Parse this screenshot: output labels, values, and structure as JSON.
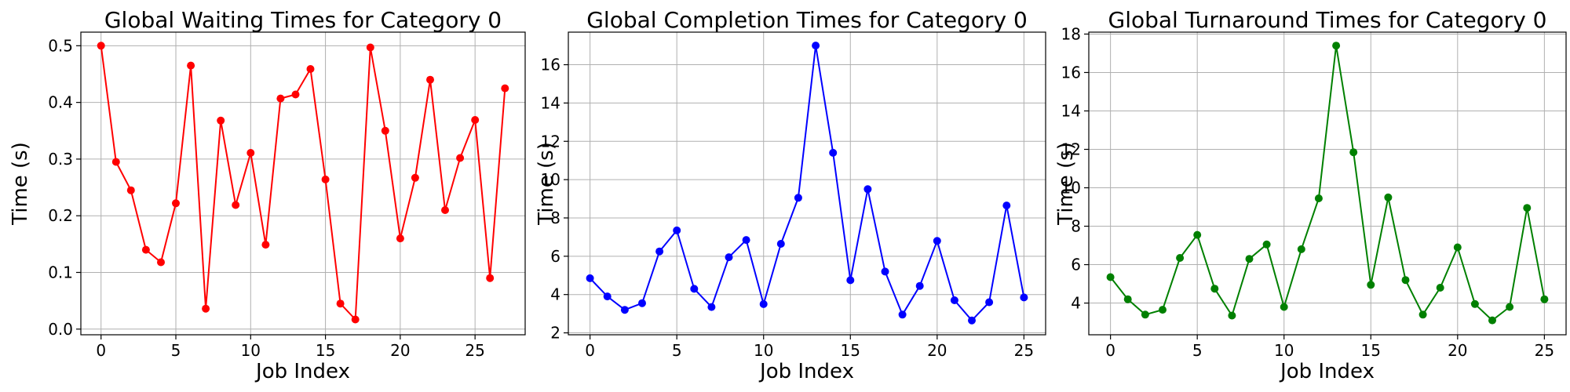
{
  "chart_data": [
    {
      "type": "line",
      "title": "Global Waiting Times for Category 0",
      "xlabel": "Job Index",
      "ylabel": "Time (s)",
      "color": "#ff0000",
      "grid": true,
      "marker": "circle",
      "xlim": [
        -1.35,
        28.35
      ],
      "ylim": [
        -0.01,
        0.524
      ],
      "xticks": [
        "0",
        "5",
        "10",
        "15",
        "20",
        "25"
      ],
      "yticks": [
        "0.0",
        "0.1",
        "0.2",
        "0.3",
        "0.4",
        "0.5"
      ],
      "x": [
        0,
        1,
        2,
        3,
        4,
        5,
        6,
        7,
        8,
        9,
        10,
        11,
        12,
        13,
        14,
        15,
        16,
        17,
        18,
        19,
        20,
        21,
        22,
        23,
        24,
        25,
        26,
        27
      ],
      "y": [
        0.5,
        0.295,
        0.245,
        0.14,
        0.118,
        0.222,
        0.465,
        0.036,
        0.368,
        0.219,
        0.311,
        0.149,
        0.407,
        0.414,
        0.459,
        0.264,
        0.045,
        0.017,
        0.497,
        0.35,
        0.16,
        0.267,
        0.44,
        0.21,
        0.302,
        0.369,
        0.09,
        0.425
      ]
    },
    {
      "type": "line",
      "title": "Global Completion Times for Category 0",
      "xlabel": "Job Index",
      "ylabel": "Time (s)",
      "color": "#0000ff",
      "grid": true,
      "marker": "circle",
      "xlim": [
        -1.25,
        26.25
      ],
      "ylim": [
        1.9,
        17.7
      ],
      "xticks": [
        "0",
        "5",
        "10",
        "15",
        "20",
        "25"
      ],
      "yticks": [
        "2",
        "4",
        "6",
        "8",
        "10",
        "12",
        "14",
        "16"
      ],
      "x": [
        0,
        1,
        2,
        3,
        4,
        5,
        6,
        7,
        8,
        9,
        10,
        11,
        12,
        13,
        14,
        15,
        16,
        17,
        18,
        19,
        20,
        21,
        22,
        23,
        24,
        25
      ],
      "y": [
        4.85,
        3.9,
        3.2,
        3.55,
        6.25,
        7.35,
        4.3,
        3.35,
        5.95,
        6.85,
        3.5,
        6.65,
        9.05,
        17.0,
        11.4,
        4.75,
        9.5,
        5.2,
        2.95,
        4.45,
        6.8,
        3.7,
        2.65,
        3.6,
        8.65,
        3.85
      ]
    },
    {
      "type": "line",
      "title": "Global Turnaround Times for Category 0",
      "xlabel": "Job Index",
      "ylabel": "Time (s)",
      "color": "#008000",
      "grid": true,
      "marker": "circle",
      "xlim": [
        -1.25,
        26.25
      ],
      "ylim": [
        2.35,
        18.1
      ],
      "xticks": [
        "0",
        "5",
        "10",
        "15",
        "20",
        "25"
      ],
      "yticks": [
        "4",
        "6",
        "8",
        "10",
        "12",
        "14",
        "16",
        "18"
      ],
      "x": [
        0,
        1,
        2,
        3,
        4,
        5,
        6,
        7,
        8,
        9,
        10,
        11,
        12,
        13,
        14,
        15,
        16,
        17,
        18,
        19,
        20,
        21,
        22,
        23,
        24,
        25
      ],
      "y": [
        5.35,
        4.2,
        3.4,
        3.65,
        6.35,
        7.55,
        4.75,
        3.35,
        6.3,
        7.05,
        3.8,
        6.8,
        9.45,
        17.4,
        11.85,
        4.95,
        9.5,
        5.2,
        3.4,
        4.8,
        6.9,
        3.95,
        3.1,
        3.8,
        8.95,
        4.2
      ]
    }
  ]
}
